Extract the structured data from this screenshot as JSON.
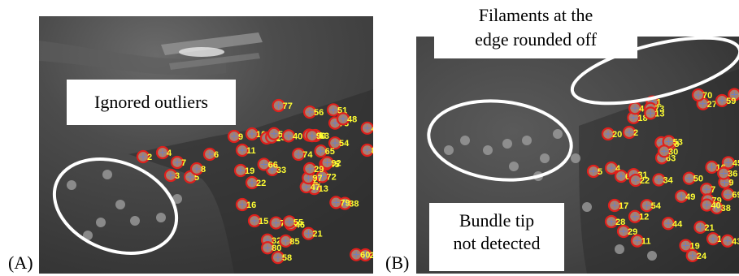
{
  "panels": [
    {
      "letter": "(A)",
      "callouts": [
        "Ignored outliers"
      ]
    },
    {
      "letter": "(B)",
      "caption_top": [
        "Filaments at the",
        "edge rounded off"
      ],
      "callouts": [
        "Bundle tip",
        "not detected"
      ]
    }
  ],
  "colors": {
    "detection_ring": "#e0201c",
    "detection_label": "#ffff33",
    "highlight_ellipse": "#ffffff"
  },
  "detection_labels_a": [
    "2",
    "4",
    "7",
    "3",
    "5",
    "6",
    "8",
    "9",
    "10",
    "11",
    "12",
    "19",
    "22",
    "16",
    "15",
    "13",
    "23",
    "27",
    "32",
    "35",
    "46",
    "51",
    "63",
    "73",
    "72",
    "77",
    "25",
    "33",
    "44",
    "47",
    "54",
    "58",
    "61",
    "65",
    "70",
    "74",
    "80",
    "85",
    "90",
    "92",
    "38",
    "50",
    "56",
    "66",
    "79",
    "88",
    "97",
    "21",
    "29",
    "40",
    "48",
    "55",
    "60"
  ],
  "detection_labels_b": [
    "5",
    "4",
    "6",
    "20",
    "2",
    "17",
    "28",
    "29",
    "7",
    "9",
    "11",
    "1",
    "8",
    "14",
    "12",
    "27",
    "33",
    "24",
    "18",
    "31",
    "41",
    "43",
    "44",
    "45",
    "49",
    "50",
    "53",
    "54",
    "57",
    "59",
    "63",
    "69",
    "70",
    "73",
    "79",
    "22",
    "13",
    "16",
    "19",
    "21",
    "30",
    "34",
    "36",
    "38",
    "40"
  ]
}
